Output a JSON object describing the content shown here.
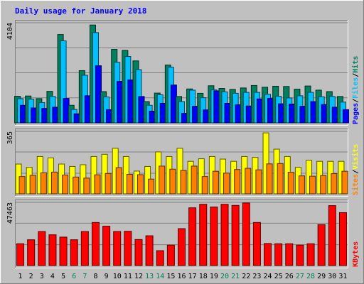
{
  "chart_data": [
    {
      "type": "bar",
      "panel": "pages-files-hits",
      "title": "Daily usage for January 2018",
      "categories": [
        "1",
        "2",
        "3",
        "4",
        "5",
        "6",
        "7",
        "8",
        "9",
        "10",
        "11",
        "12",
        "13",
        "14",
        "15",
        "16",
        "17",
        "18",
        "19",
        "20",
        "21",
        "22",
        "23",
        "24",
        "25",
        "26",
        "27",
        "28",
        "29",
        "30",
        "31"
      ],
      "weekend_days": [
        "6",
        "7",
        "13",
        "14",
        "20",
        "21",
        "27",
        "28"
      ],
      "ylim": [
        0,
        4104
      ],
      "ytick_label": "4104",
      "ylabel_parts": [
        "Pages",
        "/",
        "Files",
        "/",
        "Hits"
      ],
      "series": [
        {
          "name": "Hits",
          "color": "#00805c",
          "values": [
            1090,
            1100,
            990,
            1290,
            3620,
            720,
            2140,
            4010,
            1280,
            3010,
            2970,
            2540,
            870,
            1220,
            2370,
            1080,
            1390,
            1210,
            1520,
            1410,
            1370,
            1430,
            1530,
            1460,
            1500,
            1490,
            1380,
            1510,
            1340,
            1280,
            1080
          ]
        },
        {
          "name": "Files",
          "color": "#00c0ff",
          "values": [
            990,
            970,
            830,
            1080,
            3360,
            550,
            1950,
            3700,
            1060,
            2480,
            2720,
            2180,
            720,
            1150,
            2280,
            870,
            1340,
            1030,
            1350,
            1270,
            1210,
            1250,
            1250,
            1170,
            1090,
            1020,
            1110,
            1250,
            1070,
            1080,
            850
          ]
        },
        {
          "name": "Pages",
          "color": "#0000ff",
          "values": [
            720,
            610,
            590,
            640,
            1000,
            370,
            1110,
            2340,
            540,
            1700,
            1760,
            1080,
            480,
            800,
            1550,
            390,
            680,
            530,
            1310,
            800,
            740,
            690,
            980,
            1000,
            780,
            770,
            680,
            870,
            750,
            640,
            540
          ]
        }
      ]
    },
    {
      "type": "bar",
      "panel": "sites-visits",
      "ylim": [
        0,
        365
      ],
      "ytick_label": "365",
      "ylabel_parts": [
        "Sites",
        "/",
        "Visits"
      ],
      "series": [
        {
          "name": "Visits",
          "color": "#ffff00",
          "values": [
            174,
            155,
            218,
            210,
            174,
            160,
            170,
            218,
            231,
            266,
            218,
            133,
            160,
            245,
            218,
            266,
            190,
            205,
            218,
            203,
            190,
            218,
            213,
            356,
            261,
            218,
            155,
            196,
            190,
            190,
            190
          ]
        },
        {
          "name": "Sites",
          "color": "#ff8000",
          "values": [
            101,
            108,
            123,
            127,
            110,
            98,
            92,
            111,
            119,
            153,
            114,
            112,
            86,
            162,
            144,
            137,
            162,
            101,
            132,
            121,
            142,
            149,
            140,
            175,
            177,
            126,
            105,
            103,
            107,
            118,
            132
          ]
        }
      ]
    },
    {
      "type": "bar",
      "panel": "kbytes",
      "ylim": [
        0,
        47463
      ],
      "ytick_label": "47463",
      "ylabel_parts": [
        "KBytes"
      ],
      "series": [
        {
          "name": "KBytes",
          "color": "#ff0000",
          "values": [
            16364,
            19364,
            25546,
            23091,
            21364,
            19364,
            25546,
            32364,
            29546,
            25546,
            25727,
            19546,
            22364,
            11182,
            15364,
            27727,
            43364,
            46000,
            44000,
            46000,
            45182,
            47000,
            32364,
            16546,
            16364,
            16364,
            15364,
            16364,
            30727,
            45000,
            39727
          ]
        }
      ]
    }
  ]
}
